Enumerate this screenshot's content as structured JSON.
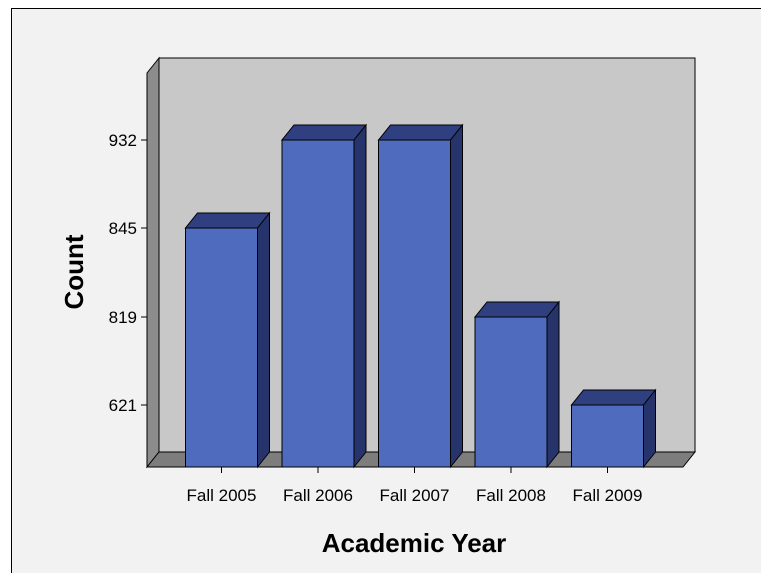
{
  "chart_data": {
    "type": "bar",
    "style": "3d",
    "title": "",
    "xlabel": "Academic Year",
    "ylabel": "Count",
    "categories": [
      "Fall 2005",
      "Fall 2006",
      "Fall 2007",
      "Fall 2008",
      "Fall 2009"
    ],
    "values": [
      845,
      932,
      932,
      819,
      621
    ],
    "y_tick_labels": [
      "621",
      "819",
      "845",
      "932"
    ],
    "grid": false,
    "legend": "none",
    "colors": {
      "bar_front": "#4f6bbd",
      "bar_side": "#27346b",
      "bar_top": "#2f3f80",
      "back_wall": "#c8c8c8",
      "side_wall": "#8c8c8c",
      "floor": "#7d7d7d",
      "frame_background": "#f2f2f2"
    }
  }
}
